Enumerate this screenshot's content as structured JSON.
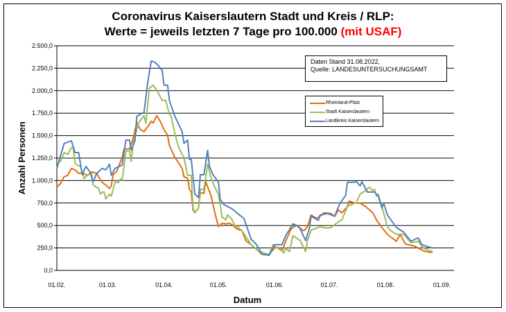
{
  "title": {
    "line1": "Coronavirus Kaiserslautern Stadt und Kreis / RLP:",
    "line2": "Werte = jeweils letzten 7 Tage pro 100.000",
    "line2_highlight": "(mit USAF)",
    "highlight_color": "#ff0000"
  },
  "note": {
    "line1": "Daten Stand 31.08.2022,",
    "line2": "Quelle: LANDESUNTERSUCHUNGSAMT"
  },
  "chart_data": {
    "type": "line",
    "xlabel": "Datum",
    "ylabel": "Anzahl Personen",
    "ylim": [
      0,
      2500
    ],
    "yticks": [
      "0,0",
      "250,0",
      "500,0",
      "750,0",
      "1.000,0",
      "1.250,0",
      "1.500,0",
      "1.750,0",
      "2.000,0",
      "2.250,0",
      "2.500,0"
    ],
    "xticks": [
      "01.02.",
      "01.03.",
      "01.04.",
      "01.05.",
      "01.06.",
      "01.07.",
      "01.08.",
      "01.09."
    ],
    "grid": "horizontal",
    "legend_placement": "top-right",
    "series": [
      {
        "name": "Rheinland-Pfalz",
        "color": "#e46c0a",
        "points": [
          [
            "01.02.",
            926
          ],
          [
            "03.02.",
            965
          ],
          [
            "05.02.",
            1042
          ],
          [
            "07.02.",
            1058
          ],
          [
            "09.02.",
            1135
          ],
          [
            "11.02.",
            1119
          ],
          [
            "13.02.",
            1081
          ],
          [
            "15.02.",
            1081
          ],
          [
            "18.02.",
            1058
          ],
          [
            "20.02.",
            1096
          ],
          [
            "23.02.",
            1081
          ],
          [
            "24.02.",
            1042
          ],
          [
            "26.02.",
            980
          ],
          [
            "28.02.",
            950
          ],
          [
            "02.03.",
            911
          ],
          [
            "03.03.",
            941
          ],
          [
            "04.03.",
            1065
          ],
          [
            "06.03.",
            1104
          ],
          [
            "09.03.",
            1258
          ],
          [
            "10.03.",
            1351
          ],
          [
            "13.03.",
            1351
          ],
          [
            "15.03.",
            1467
          ],
          [
            "17.03.",
            1644
          ],
          [
            "19.03.",
            1567
          ],
          [
            "21.03.",
            1544
          ],
          [
            "23.03.",
            1598
          ],
          [
            "25.03.",
            1660
          ],
          [
            "26.03.",
            1640
          ],
          [
            "28.03.",
            1722
          ],
          [
            "30.03.",
            1660
          ],
          [
            "01.04.",
            1567
          ],
          [
            "03.04.",
            1505
          ],
          [
            "04.04.",
            1390
          ],
          [
            "07.04.",
            1258
          ],
          [
            "11.04.",
            1135
          ],
          [
            "12.04.",
            1042
          ],
          [
            "14.04.",
            1027
          ],
          [
            "15.04.",
            903
          ],
          [
            "16.04.",
            872
          ],
          [
            "17.04.",
            672
          ],
          [
            "18.04.",
            641
          ],
          [
            "20.04.",
            695
          ],
          [
            "21.04.",
            865
          ],
          [
            "23.04.",
            857
          ],
          [
            "24.04.",
            988
          ],
          [
            "27.04.",
            826
          ],
          [
            "29.04.",
            641
          ],
          [
            "01.05.",
            486
          ],
          [
            "03.05.",
            525
          ],
          [
            "05.05.",
            517
          ],
          [
            "07.05.",
            525
          ],
          [
            "09.05.",
            502
          ],
          [
            "11.05.",
            463
          ],
          [
            "14.05.",
            440
          ],
          [
            "16.05.",
            332
          ],
          [
            "19.05.",
            286
          ],
          [
            "23.05.",
            216
          ],
          [
            "25.05.",
            178
          ],
          [
            "29.05.",
            178
          ],
          [
            "01.06.",
            255
          ],
          [
            "03.06.",
            255
          ],
          [
            "05.06.",
            216
          ],
          [
            "07.06.",
            324
          ],
          [
            "10.06.",
            463
          ],
          [
            "13.06.",
            502
          ],
          [
            "17.06.",
            440
          ],
          [
            "19.06.",
            486
          ],
          [
            "21.06.",
            617
          ],
          [
            "24.06.",
            579
          ],
          [
            "27.06.",
            617
          ],
          [
            "28.06.",
            641
          ],
          [
            "02.07.",
            633
          ],
          [
            "04.07.",
            602
          ],
          [
            "06.07.",
            672
          ],
          [
            "08.07.",
            641
          ],
          [
            "11.07.",
            710
          ],
          [
            "12.07.",
            772
          ],
          [
            "15.07.",
            749
          ],
          [
            "18.07.",
            749
          ],
          [
            "21.07.",
            710
          ],
          [
            "25.07.",
            641
          ],
          [
            "27.07.",
            563
          ],
          [
            "30.07.",
            478
          ],
          [
            "02.08.",
            401
          ],
          [
            "07.08.",
            324
          ],
          [
            "09.08.",
            401
          ],
          [
            "12.08.",
            293
          ],
          [
            "17.08.",
            270
          ],
          [
            "22.08.",
            216
          ],
          [
            "26.08.",
            200
          ],
          [
            "27.08.",
            208
          ]
        ]
      },
      {
        "name": "Stadt Kaiserslautern",
        "color": "#9bbb59",
        "points": [
          [
            "01.02.",
            1197
          ],
          [
            "03.02.",
            1212
          ],
          [
            "05.02.",
            1312
          ],
          [
            "07.02.",
            1289
          ],
          [
            "09.02.",
            1366
          ],
          [
            "10.02.",
            1366
          ],
          [
            "11.02.",
            1197
          ],
          [
            "12.02.",
            1173
          ],
          [
            "14.02.",
            1158
          ],
          [
            "16.02.",
            1019
          ],
          [
            "18.02.",
            1065
          ],
          [
            "20.02.",
            1081
          ],
          [
            "21.02.",
            950
          ],
          [
            "24.02.",
            911
          ],
          [
            "25.02.",
            849
          ],
          [
            "26.02.",
            872
          ],
          [
            "27.02.",
            872
          ],
          [
            "28.02.",
            795
          ],
          [
            "02.03.",
            849
          ],
          [
            "03.03.",
            826
          ],
          [
            "05.03.",
            980
          ],
          [
            "07.03.",
            980
          ],
          [
            "08.03.",
            1019
          ],
          [
            "09.03.",
            1000
          ],
          [
            "11.03.",
            1328
          ],
          [
            "13.03.",
            1328
          ],
          [
            "14.03.",
            1212
          ],
          [
            "15.03.",
            1413
          ],
          [
            "18.03.",
            1644
          ],
          [
            "21.03.",
            1722
          ],
          [
            "22.03.",
            1637
          ],
          [
            "24.03.",
            2030
          ],
          [
            "26.03.",
            2061
          ],
          [
            "28.03.",
            2007
          ],
          [
            "31.03.",
            1891
          ],
          [
            "02.04.",
            1891
          ],
          [
            "04.04.",
            1737
          ],
          [
            "05.04.",
            1714
          ],
          [
            "07.04.",
            1521
          ],
          [
            "09.04.",
            1374
          ],
          [
            "11.04.",
            1289
          ],
          [
            "12.04.",
            1258
          ],
          [
            "14.04.",
            1058
          ],
          [
            "16.04.",
            1058
          ],
          [
            "17.04.",
            695
          ],
          [
            "18.04.",
            641
          ],
          [
            "20.04.",
            695
          ],
          [
            "21.04.",
            903
          ],
          [
            "23.04.",
            903
          ],
          [
            "25.04.",
            1181
          ],
          [
            "27.04.",
            1027
          ],
          [
            "29.04.",
            926
          ],
          [
            "01.05.",
            849
          ],
          [
            "03.05.",
            594
          ],
          [
            "05.05.",
            563
          ],
          [
            "06.05.",
            617
          ],
          [
            "08.05.",
            579
          ],
          [
            "10.05.",
            502
          ],
          [
            "12.05.",
            478
          ],
          [
            "14.05.",
            440
          ],
          [
            "17.05.",
            347
          ],
          [
            "19.05.",
            286
          ],
          [
            "23.05.",
            216
          ],
          [
            "26.05.",
            193
          ],
          [
            "29.05.",
            178
          ],
          [
            "31.05.",
            286
          ],
          [
            "02.06.",
            255
          ],
          [
            "05.06.",
            216
          ],
          [
            "06.06.",
            193
          ],
          [
            "07.06.",
            247
          ],
          [
            "09.06.",
            208
          ],
          [
            "11.06.",
            386
          ],
          [
            "15.06.",
            332
          ],
          [
            "18.06.",
            208
          ],
          [
            "19.06.",
            332
          ],
          [
            "21.06.",
            448
          ],
          [
            "23.06.",
            463
          ],
          [
            "26.06.",
            486
          ],
          [
            "29.06.",
            471
          ],
          [
            "02.07.",
            478
          ],
          [
            "06.07.",
            540
          ],
          [
            "08.07.",
            563
          ],
          [
            "11.07.",
            710
          ],
          [
            "16.07.",
            757
          ],
          [
            "18.07.",
            849
          ],
          [
            "21.07.",
            888
          ],
          [
            "23.07.",
            926
          ],
          [
            "25.07.",
            888
          ],
          [
            "26.07.",
            903
          ],
          [
            "27.07.",
            826
          ],
          [
            "28.07.",
            849
          ],
          [
            "30.07.",
            710
          ],
          [
            "02.08.",
            486
          ],
          [
            "04.08.",
            440
          ],
          [
            "07.08.",
            401
          ],
          [
            "11.08.",
            401
          ],
          [
            "15.08.",
            309
          ],
          [
            "19.08.",
            324
          ],
          [
            "22.08.",
            247
          ],
          [
            "27.08.",
            208
          ]
        ]
      },
      {
        "name": "Landkreis Kaiserslautern",
        "color": "#4f81bd",
        "points": [
          [
            "01.02.",
            1135
          ],
          [
            "05.02.",
            1413
          ],
          [
            "09.02.",
            1443
          ],
          [
            "11.02.",
            1312
          ],
          [
            "13.02.",
            1312
          ],
          [
            "15.02.",
            1065
          ],
          [
            "17.02.",
            1158
          ],
          [
            "19.02.",
            1104
          ],
          [
            "21.02.",
            988
          ],
          [
            "23.02.",
            1081
          ],
          [
            "26.02.",
            1135
          ],
          [
            "28.02.",
            1119
          ],
          [
            "02.03.",
            1181
          ],
          [
            "03.03.",
            1058
          ],
          [
            "05.03.",
            1135
          ],
          [
            "09.03.",
            1173
          ],
          [
            "11.03.",
            1451
          ],
          [
            "13.03.",
            1451
          ],
          [
            "14.03.",
            1336
          ],
          [
            "16.03.",
            1443
          ],
          [
            "17.03.",
            1714
          ],
          [
            "21.03.",
            1760
          ],
          [
            "23.03.",
            2084
          ],
          [
            "25.03.",
            2331
          ],
          [
            "27.03.",
            2316
          ],
          [
            "29.03.",
            2277
          ],
          [
            "31.03.",
            2223
          ],
          [
            "01.04.",
            2061
          ],
          [
            "03.04.",
            2061
          ],
          [
            "04.04.",
            1891
          ],
          [
            "07.04.",
            1714
          ],
          [
            "11.04.",
            1544
          ],
          [
            "12.04.",
            1413
          ],
          [
            "14.04.",
            1451
          ],
          [
            "15.04.",
            1235
          ],
          [
            "16.04.",
            1235
          ],
          [
            "18.04.",
            849
          ],
          [
            "20.04.",
            810
          ],
          [
            "21.04.",
            1065
          ],
          [
            "23.04.",
            1065
          ],
          [
            "25.04.",
            1336
          ],
          [
            "26.04.",
            1158
          ],
          [
            "28.04.",
            1065
          ],
          [
            "01.05.",
            980
          ],
          [
            "02.05.",
            787
          ],
          [
            "04.05.",
            733
          ],
          [
            "09.05.",
            679
          ],
          [
            "11.05.",
            641
          ],
          [
            "15.05.",
            579
          ],
          [
            "17.05.",
            463
          ],
          [
            "19.05.",
            347
          ],
          [
            "22.05.",
            286
          ],
          [
            "25.05.",
            178
          ],
          [
            "29.05.",
            170
          ],
          [
            "01.06.",
            286
          ],
          [
            "05.06.",
            286
          ],
          [
            "07.06.",
            386
          ],
          [
            "11.06.",
            517
          ],
          [
            "13.06.",
            502
          ],
          [
            "15.06.",
            463
          ],
          [
            "18.06.",
            332
          ],
          [
            "20.06.",
            463
          ],
          [
            "21.06.",
            602
          ],
          [
            "25.06.",
            556
          ],
          [
            "26.06.",
            617
          ],
          [
            "30.06.",
            633
          ],
          [
            "04.07.",
            602
          ],
          [
            "05.07.",
            656
          ],
          [
            "07.07.",
            749
          ],
          [
            "10.07.",
            834
          ],
          [
            "11.07.",
            980
          ],
          [
            "14.07.",
            980
          ],
          [
            "16.07.",
            988
          ],
          [
            "18.07.",
            941
          ],
          [
            "19.07.",
            988
          ],
          [
            "22.07.",
            872
          ],
          [
            "26.07.",
            872
          ],
          [
            "28.07.",
            826
          ],
          [
            "30.07.",
            695
          ],
          [
            "31.07.",
            749
          ],
          [
            "02.08.",
            617
          ],
          [
            "07.08.",
            478
          ],
          [
            "11.08.",
            425
          ],
          [
            "15.08.",
            324
          ],
          [
            "19.08.",
            363
          ],
          [
            "21.08.",
            286
          ],
          [
            "27.08.",
            247
          ]
        ]
      }
    ]
  }
}
